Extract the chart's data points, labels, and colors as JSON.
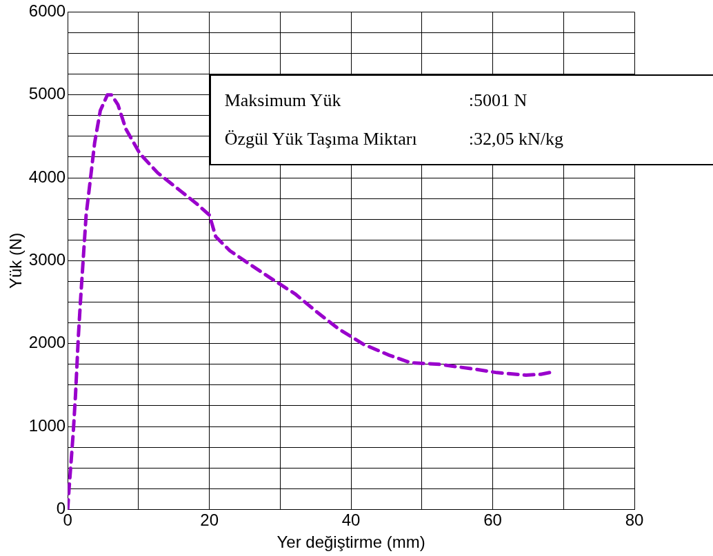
{
  "chart_data": {
    "type": "line",
    "xlabel": "Yer değiştirme (mm)",
    "ylabel": "Yük (N)",
    "xlim": [
      0,
      80
    ],
    "xticks": [
      0,
      {
        "value": 10,
        "label": null
      },
      20,
      {
        "value": 30,
        "label": null
      },
      40,
      {
        "value": 50,
        "label": null
      },
      60,
      {
        "value": 70,
        "label": null
      },
      80
    ],
    "ylim": [
      0,
      6000
    ],
    "yticks": [
      0,
      {
        "value": 250,
        "label": null
      },
      {
        "value": 500,
        "label": null
      },
      {
        "value": 750,
        "label": null
      },
      1000,
      {
        "value": 1250,
        "label": null
      },
      {
        "value": 1500,
        "label": null
      },
      {
        "value": 1750,
        "label": null
      },
      2000,
      {
        "value": 2250,
        "label": null
      },
      {
        "value": 2500,
        "label": null
      },
      {
        "value": 2750,
        "label": null
      },
      3000,
      {
        "value": 3250,
        "label": null
      },
      {
        "value": 3500,
        "label": null
      },
      {
        "value": 3750,
        "label": null
      },
      4000,
      {
        "value": 4250,
        "label": null
      },
      {
        "value": 4500,
        "label": null
      },
      {
        "value": 4750,
        "label": null
      },
      5000,
      {
        "value": 5250,
        "label": null
      },
      {
        "value": 5500,
        "label": null
      },
      {
        "value": 5750,
        "label": null
      },
      6000
    ],
    "grid": true,
    "legend": false,
    "marker": "none",
    "line_style": "dashed",
    "series": [
      {
        "color": "#9900cc",
        "x": [
          0,
          0.2,
          0.5,
          0.8,
          1.1,
          1.5,
          1.8,
          2.2,
          2.6,
          3.2,
          3.8,
          4.6,
          5.6,
          6.2,
          7.1,
          8.2,
          10.2,
          12.7,
          15.8,
          18.3,
          20,
          20.9,
          22.9,
          26,
          29,
          32.1,
          35.2,
          38.2,
          41.8,
          45.4,
          48.4,
          52.5,
          57.6,
          60.6,
          64.7,
          66.8,
          68.6
        ],
        "values": [
          0,
          260,
          600,
          950,
          1380,
          2080,
          2510,
          3030,
          3550,
          3980,
          4420,
          4810,
          5000,
          5000,
          4880,
          4590,
          4290,
          4060,
          3850,
          3680,
          3550,
          3290,
          3120,
          2940,
          2770,
          2600,
          2380,
          2180,
          1990,
          1860,
          1770,
          1750,
          1690,
          1650,
          1620,
          1630,
          1660
        ]
      }
    ],
    "annotations": [
      "Maksimum Yük",
      ":5001 N",
      "Özgül Yük Taşıma Miktarı",
      ":32,05 kN/kg"
    ]
  }
}
